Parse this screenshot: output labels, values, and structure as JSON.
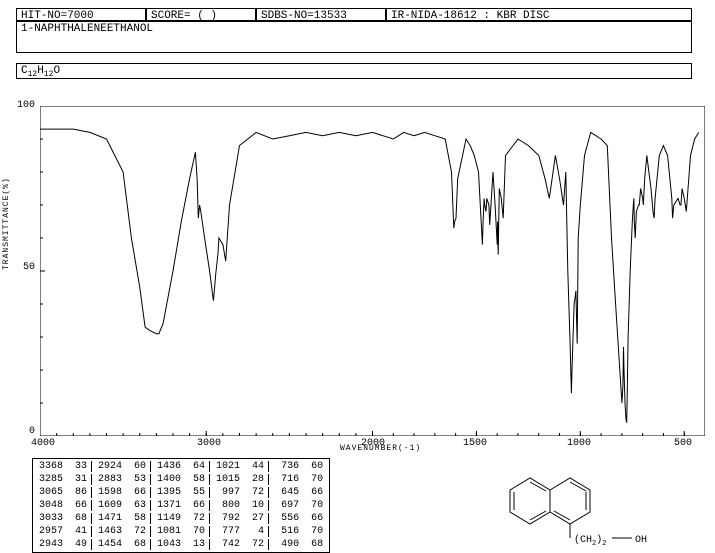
{
  "header": {
    "hit_no": "HIT-NO=7000",
    "score": "SCORE=  (  )",
    "sdbs_no": "SDBS-NO=13533",
    "ir_info": "IR-NIDA-18612 : KBR DISC",
    "compound": "1-NAPHTHALENEETHANOL",
    "formula_prefix": "C",
    "formula_c": "12",
    "formula_h_prefix": "H",
    "formula_h": "12",
    "formula_o": "O"
  },
  "chart": {
    "type": "line",
    "xlabel": "WAVENUMBER(-1)",
    "ylabel": "TRANSMITTANCE(%)",
    "xlim": [
      4000,
      400
    ],
    "ylim": [
      0,
      100
    ],
    "xticks": [
      4000,
      3000,
      2000,
      1500,
      1000,
      500
    ],
    "yticks": [
      0,
      50,
      100
    ],
    "line_color": "#000000",
    "background_color": "#ffffff",
    "border_color": "#000000",
    "spectrum": [
      [
        4000,
        93
      ],
      [
        3900,
        93
      ],
      [
        3800,
        93
      ],
      [
        3700,
        92
      ],
      [
        3600,
        90
      ],
      [
        3500,
        80
      ],
      [
        3450,
        60
      ],
      [
        3400,
        45
      ],
      [
        3368,
        33
      ],
      [
        3340,
        32
      ],
      [
        3300,
        31
      ],
      [
        3285,
        31
      ],
      [
        3260,
        34
      ],
      [
        3200,
        50
      ],
      [
        3150,
        65
      ],
      [
        3100,
        78
      ],
      [
        3065,
        86
      ],
      [
        3055,
        78
      ],
      [
        3048,
        66
      ],
      [
        3040,
        70
      ],
      [
        3033,
        68
      ],
      [
        3010,
        60
      ],
      [
        2980,
        50
      ],
      [
        2957,
        41
      ],
      [
        2950,
        45
      ],
      [
        2943,
        49
      ],
      [
        2930,
        55
      ],
      [
        2924,
        60
      ],
      [
        2900,
        58
      ],
      [
        2883,
        53
      ],
      [
        2860,
        70
      ],
      [
        2800,
        88
      ],
      [
        2700,
        92
      ],
      [
        2600,
        90
      ],
      [
        2500,
        91
      ],
      [
        2400,
        92
      ],
      [
        2300,
        91
      ],
      [
        2200,
        92
      ],
      [
        2100,
        91
      ],
      [
        2000,
        92
      ],
      [
        1950,
        91
      ],
      [
        1900,
        90
      ],
      [
        1850,
        92
      ],
      [
        1800,
        91
      ],
      [
        1750,
        92
      ],
      [
        1700,
        91
      ],
      [
        1650,
        90
      ],
      [
        1620,
        80
      ],
      [
        1609,
        63
      ],
      [
        1605,
        65
      ],
      [
        1598,
        66
      ],
      [
        1590,
        78
      ],
      [
        1550,
        90
      ],
      [
        1530,
        88
      ],
      [
        1510,
        85
      ],
      [
        1490,
        80
      ],
      [
        1471,
        58
      ],
      [
        1468,
        65
      ],
      [
        1463,
        72
      ],
      [
        1460,
        70
      ],
      [
        1454,
        68
      ],
      [
        1450,
        72
      ],
      [
        1440,
        70
      ],
      [
        1436,
        64
      ],
      [
        1420,
        80
      ],
      [
        1410,
        70
      ],
      [
        1400,
        58
      ],
      [
        1398,
        65
      ],
      [
        1395,
        55
      ],
      [
        1390,
        75
      ],
      [
        1380,
        72
      ],
      [
        1371,
        66
      ],
      [
        1360,
        85
      ],
      [
        1300,
        90
      ],
      [
        1250,
        88
      ],
      [
        1200,
        85
      ],
      [
        1170,
        78
      ],
      [
        1149,
        72
      ],
      [
        1120,
        85
      ],
      [
        1100,
        78
      ],
      [
        1081,
        70
      ],
      [
        1070,
        80
      ],
      [
        1060,
        50
      ],
      [
        1050,
        30
      ],
      [
        1043,
        13
      ],
      [
        1040,
        20
      ],
      [
        1030,
        40
      ],
      [
        1025,
        42
      ],
      [
        1021,
        44
      ],
      [
        1018,
        35
      ],
      [
        1015,
        28
      ],
      [
        1010,
        60
      ],
      [
        1000,
        70
      ],
      [
        997,
        72
      ],
      [
        980,
        85
      ],
      [
        950,
        92
      ],
      [
        900,
        90
      ],
      [
        870,
        88
      ],
      [
        850,
        60
      ],
      [
        830,
        40
      ],
      [
        810,
        20
      ],
      [
        800,
        10
      ],
      [
        795,
        15
      ],
      [
        792,
        27
      ],
      [
        790,
        20
      ],
      [
        785,
        10
      ],
      [
        780,
        5
      ],
      [
        777,
        4
      ],
      [
        775,
        10
      ],
      [
        770,
        30
      ],
      [
        760,
        50
      ],
      [
        750,
        65
      ],
      [
        745,
        70
      ],
      [
        742,
        72
      ],
      [
        740,
        65
      ],
      [
        736,
        60
      ],
      [
        730,
        68
      ],
      [
        720,
        70
      ],
      [
        716,
        70
      ],
      [
        710,
        75
      ],
      [
        700,
        72
      ],
      [
        697,
        70
      ],
      [
        690,
        78
      ],
      [
        680,
        85
      ],
      [
        670,
        80
      ],
      [
        660,
        75
      ],
      [
        650,
        68
      ],
      [
        645,
        66
      ],
      [
        640,
        72
      ],
      [
        620,
        85
      ],
      [
        600,
        88
      ],
      [
        580,
        85
      ],
      [
        560,
        72
      ],
      [
        556,
        66
      ],
      [
        550,
        70
      ],
      [
        530,
        72
      ],
      [
        520,
        70
      ],
      [
        516,
        70
      ],
      [
        510,
        75
      ],
      [
        500,
        72
      ],
      [
        495,
        70
      ],
      [
        490,
        68
      ],
      [
        470,
        85
      ],
      [
        450,
        90
      ],
      [
        430,
        92
      ]
    ]
  },
  "peaks": {
    "columns": [
      [
        [
          "3368",
          "33"
        ],
        [
          "3285",
          "31"
        ],
        [
          "3065",
          "86"
        ],
        [
          "3048",
          "66"
        ],
        [
          "3033",
          "68"
        ],
        [
          "2957",
          "41"
        ],
        [
          "2943",
          "49"
        ]
      ],
      [
        [
          "2924",
          "60"
        ],
        [
          "2883",
          "53"
        ],
        [
          "1598",
          "66"
        ],
        [
          "1609",
          "63"
        ],
        [
          "1471",
          "58"
        ],
        [
          "1463",
          "72"
        ],
        [
          "1454",
          "68"
        ]
      ],
      [
        [
          "1436",
          "64"
        ],
        [
          "1400",
          "58"
        ],
        [
          "1395",
          "55"
        ],
        [
          "1371",
          "66"
        ],
        [
          "1149",
          "72"
        ],
        [
          "1081",
          "70"
        ],
        [
          "1043",
          "13"
        ]
      ],
      [
        [
          "1021",
          "44"
        ],
        [
          "1015",
          "28"
        ],
        [
          "997",
          "72"
        ],
        [
          "800",
          "10"
        ],
        [
          "792",
          "27"
        ],
        [
          "777",
          " 4"
        ],
        [
          "742",
          "72"
        ]
      ],
      [
        [
          "736",
          "60"
        ],
        [
          "716",
          "70"
        ],
        [
          "645",
          "66"
        ],
        [
          "697",
          "70"
        ],
        [
          "556",
          "66"
        ],
        [
          "516",
          "70"
        ],
        [
          "490",
          "68"
        ]
      ]
    ]
  },
  "structure": {
    "label_ch2": "(CH",
    "label_ch2_sub": "2",
    "label_ch2_close": ")",
    "label_ch2_count": "2",
    "label_oh": "OH"
  }
}
